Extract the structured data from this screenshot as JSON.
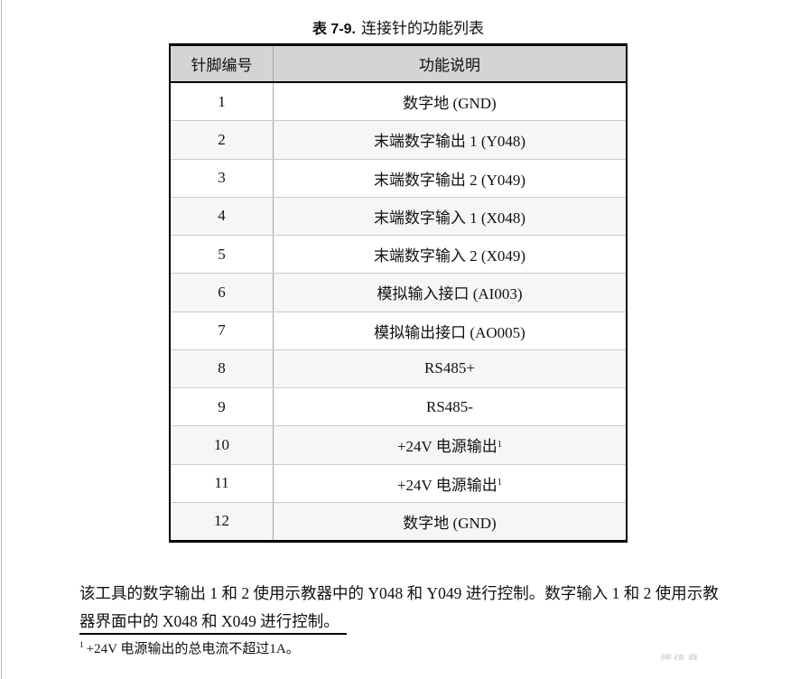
{
  "page": {
    "title_label": "表 7-9.",
    "title_text": "连接针的功能列表"
  },
  "table": {
    "headers": [
      "针脚编号",
      "功能说明"
    ],
    "rows": [
      {
        "pin": "1",
        "func": "数字地 (GND)"
      },
      {
        "pin": "2",
        "func": "末端数字输出 1 (Y048)"
      },
      {
        "pin": "3",
        "func": "末端数字输出 2 (Y049)"
      },
      {
        "pin": "4",
        "func": "末端数字输入 1 (X048)"
      },
      {
        "pin": "5",
        "func": "末端数字输入 2 (X049)"
      },
      {
        "pin": "6",
        "func": "模拟输入接口 (AI003)"
      },
      {
        "pin": "7",
        "func": "模拟输出接口 (AO005)"
      },
      {
        "pin": "8",
        "func": "RS485+"
      },
      {
        "pin": "9",
        "func": "RS485-"
      },
      {
        "pin": "10",
        "func": "+24V 电源输出",
        "sup": "1"
      },
      {
        "pin": "11",
        "func": "+24V 电源输出",
        "sup": "1"
      },
      {
        "pin": "12",
        "func": "数字地 (GND)"
      }
    ]
  },
  "paragraph": {
    "lines": [
      "该工具的数字输出 1 和 2 使用示教器中的 Y048 和 Y049 进行控制。数字输入 1 和 2 使用示教",
      "器界面中的 X048 和 X049 进行控制。"
    ]
  },
  "footnote": {
    "marker": "1",
    "text": "+24V 电源输出的总电流不超过1A。"
  },
  "watermark_fragment": "端信息",
  "colors": {
    "header_bg": "#d4d4d4",
    "alt_row_bg": "#f6f6f6",
    "table_border": "#000000",
    "row_divider": "#cccccc",
    "column_divider": "#a0a6a6"
  }
}
